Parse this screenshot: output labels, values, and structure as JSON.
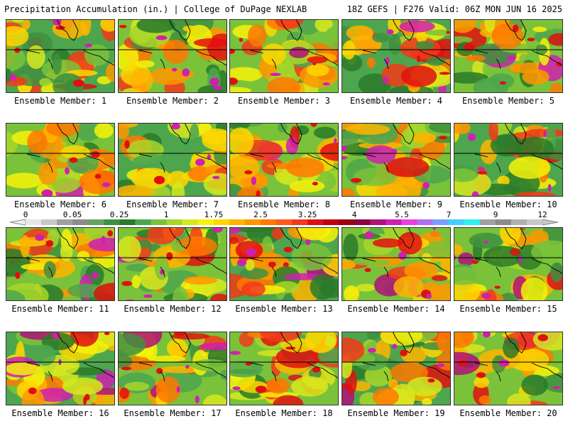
{
  "header": {
    "left": "Precipitation Accumulation (in.) | College of DuPage NEXLAB",
    "right": "18Z GEFS | F276 Valid: 06Z MON JUN 16 2025"
  },
  "member_prefix": "Ensemble Member: ",
  "members": [
    1,
    2,
    3,
    4,
    5,
    6,
    7,
    8,
    9,
    10,
    11,
    12,
    13,
    14,
    15,
    16,
    17,
    18,
    19,
    20
  ],
  "colorbar": {
    "labels": [
      "0",
      "0.05",
      "0.25",
      "1",
      "1.75",
      "2.5",
      "3.25",
      "4",
      "5.5",
      "7",
      "9",
      "12"
    ],
    "colors": [
      "#e6e6e6",
      "#c8c8c8",
      "#a0a0a0",
      "#8c8c8c",
      "#66a366",
      "#3f8f3f",
      "#2a7a2a",
      "#4da64d",
      "#7ac23a",
      "#a8d62a",
      "#d7e81e",
      "#f6f20a",
      "#ffd700",
      "#ffb400",
      "#ff9600",
      "#ff7800",
      "#ff5a1a",
      "#f23a1a",
      "#e01010",
      "#c00010",
      "#9e0010",
      "#8a0040",
      "#b0107a",
      "#d020b0",
      "#e840e0",
      "#b070f0",
      "#7aa0ff",
      "#40d0ff",
      "#30f0f0",
      "#a0a0a0",
      "#8c8c8c",
      "#b0b0b0",
      "#c8c8c8"
    ]
  }
}
